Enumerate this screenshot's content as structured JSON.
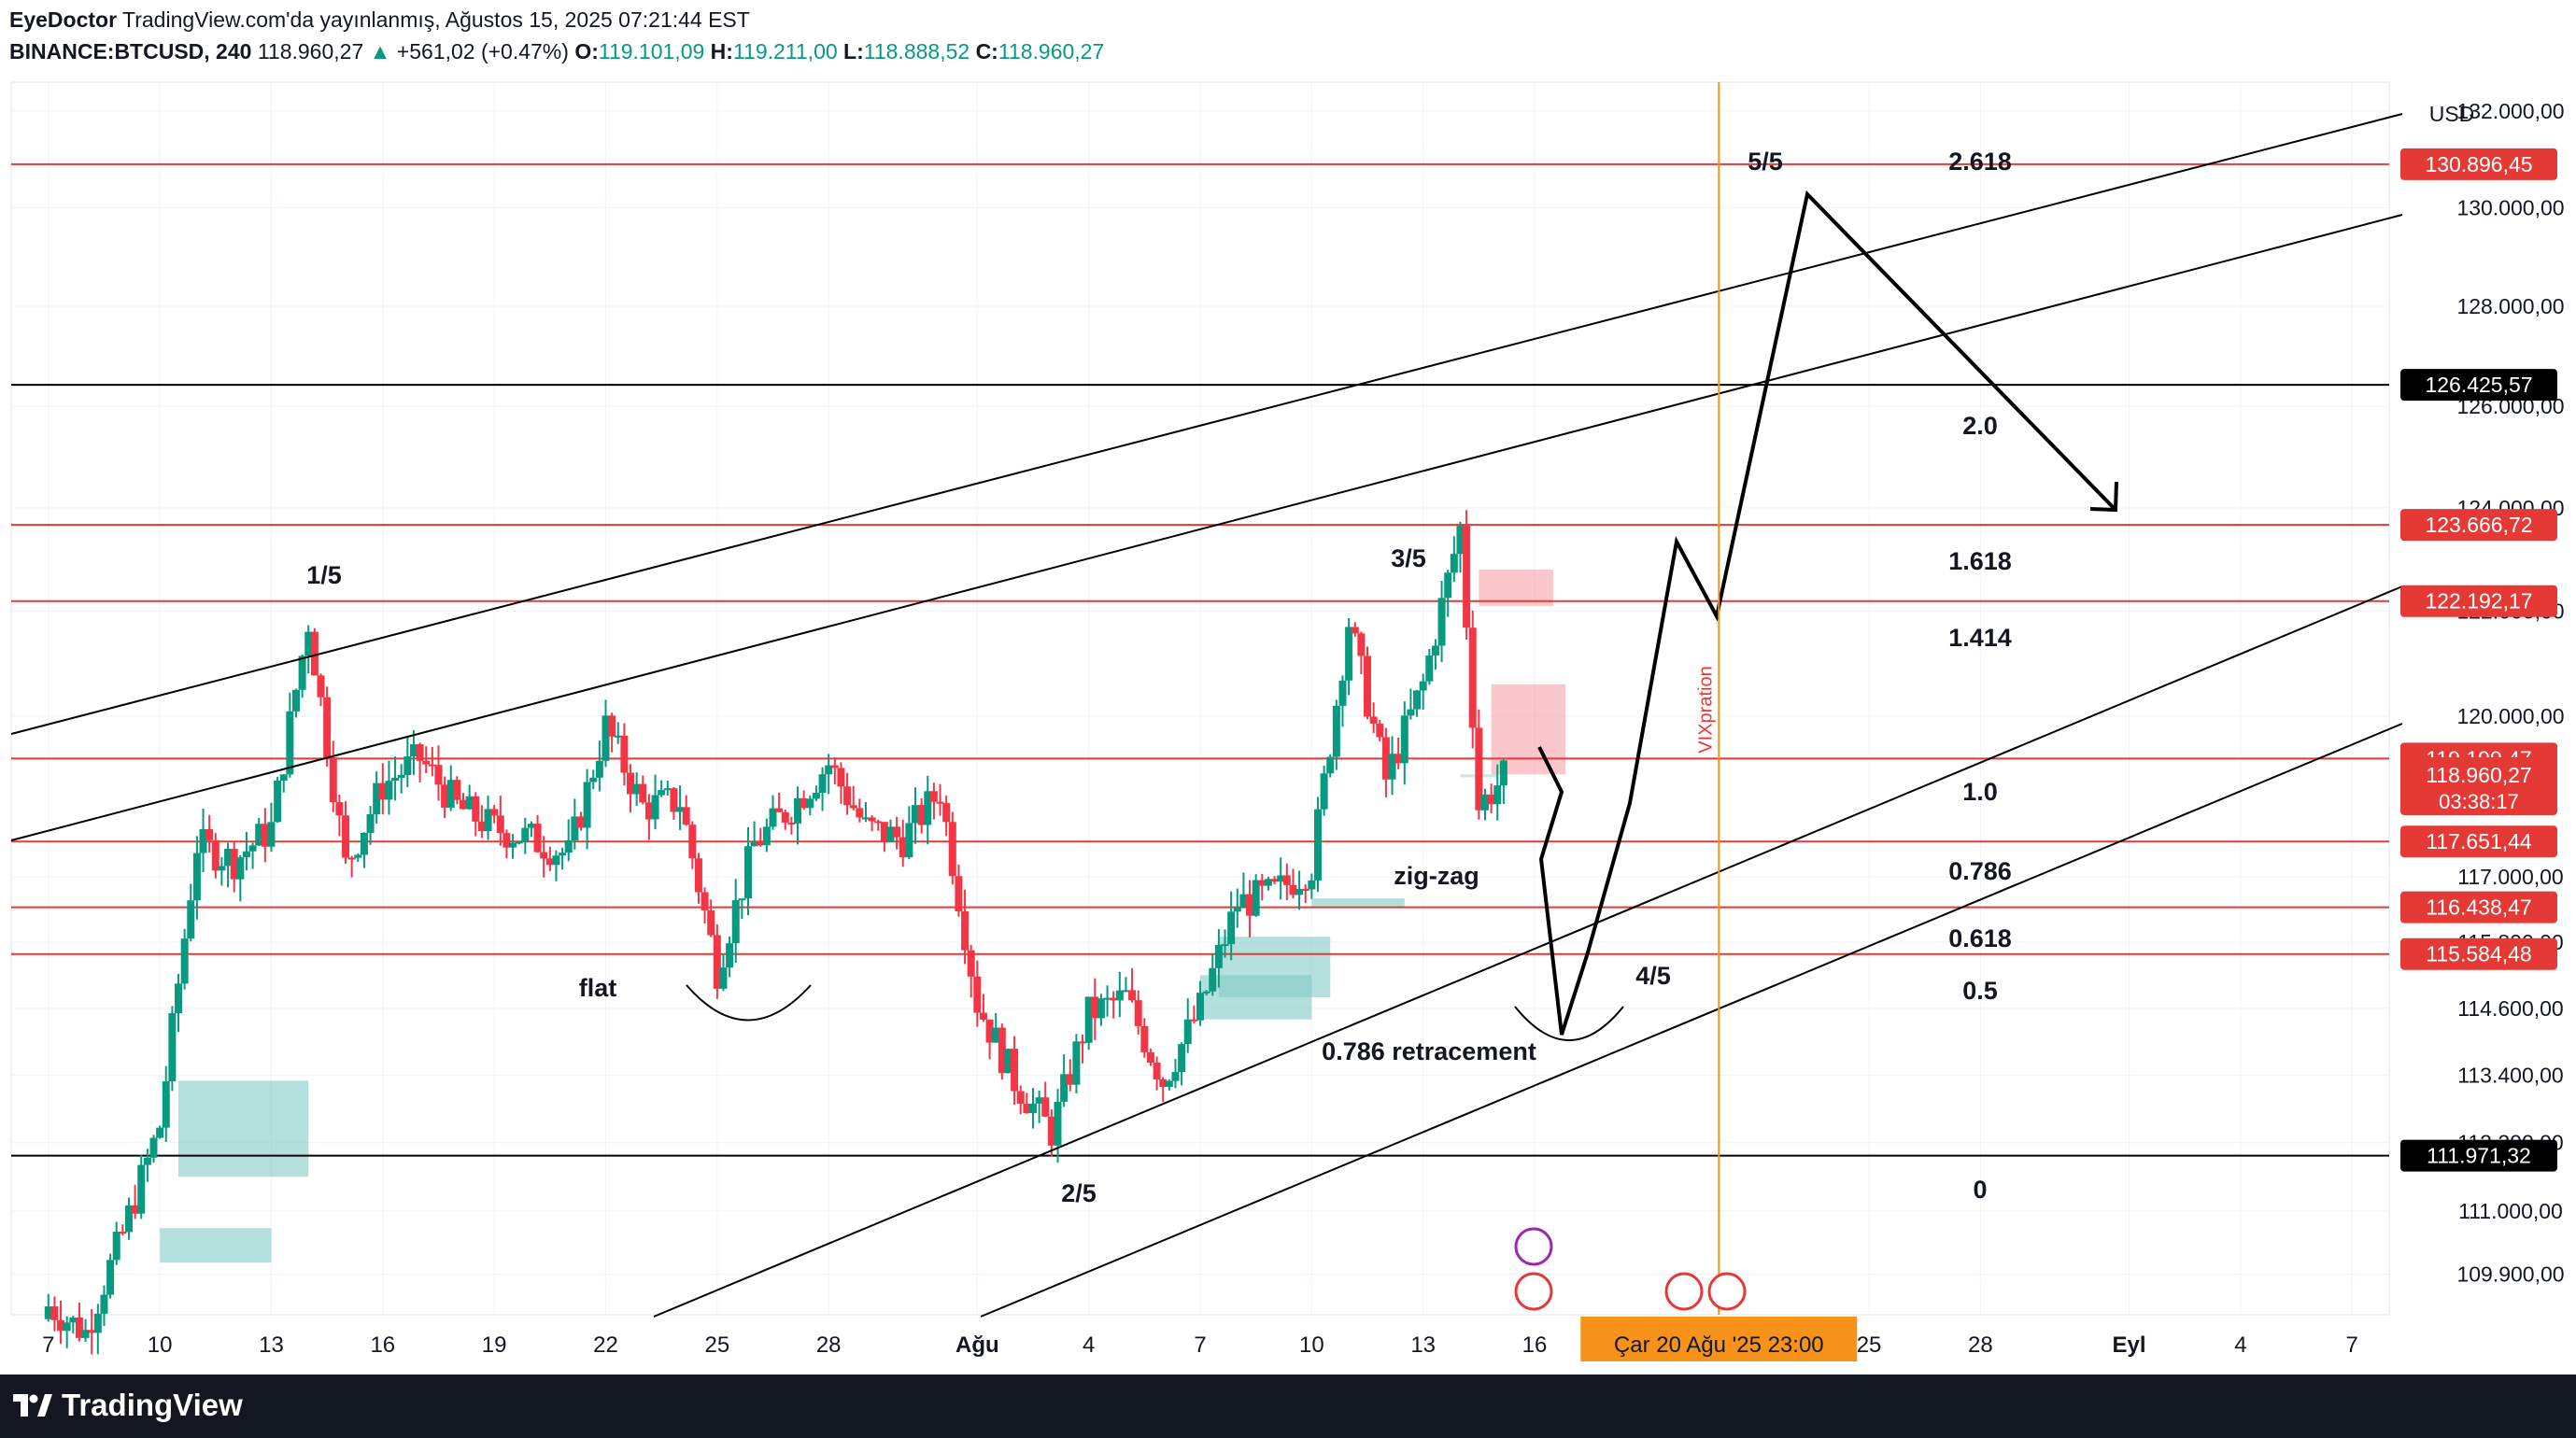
{
  "header": {
    "author": "EyeDoctor",
    "published": "TradingView.com'da yayınlanmış, Ağustos 15, 2025 07:21:44 EST",
    "symbol": "BINANCE:BTCUSD, 240",
    "last": "118.960,27",
    "change_arrow": "▲",
    "change": "+561,02 (+0.47%)",
    "o_label": "O:",
    "o_value": "119.101,09",
    "h_label": "H:",
    "h_value": "119.211,00",
    "l_label": "L:",
    "l_value": "118.888,52",
    "c_label": "C:",
    "c_value": "118.960,27"
  },
  "footer": {
    "brand": "TradingView",
    "logo_icon": "tradingview-logo-icon"
  },
  "colors": {
    "up": "#089981",
    "down": "#f23645",
    "red_line": "#e53935",
    "vertical_event": "#f7931a",
    "zone_green": "#80cbc4",
    "zone_red": "#f7a1ab"
  },
  "chart_data": {
    "type": "candlestick",
    "currency": "USD",
    "y_scale": "log",
    "ylim": [
      109200,
      132600
    ],
    "y_ticks": [
      {
        "value": 132000,
        "label": "132.000,00"
      },
      {
        "value": 130000,
        "label": "130.000,00"
      },
      {
        "value": 128000,
        "label": "128.000,00"
      },
      {
        "value": 126000,
        "label": "126.000,00"
      },
      {
        "value": 124000,
        "label": "124.000,00"
      },
      {
        "value": 122000,
        "label": "122.000,00"
      },
      {
        "value": 120000,
        "label": "120.000,00"
      },
      {
        "value": 117000,
        "label": "117.000,00"
      },
      {
        "value": 115800,
        "label": "115.800,00"
      },
      {
        "value": 114600,
        "label": "114.600,00"
      },
      {
        "value": 113400,
        "label": "113.400,00"
      },
      {
        "value": 112200,
        "label": "112.200,00"
      },
      {
        "value": 111000,
        "label": "111.000,00"
      },
      {
        "value": 109900,
        "label": "109.900,00"
      }
    ],
    "x_domain": [
      "2025-07-06",
      "2025-09-08"
    ],
    "x_ticks": [
      {
        "date": "2025-07-07",
        "label": "7"
      },
      {
        "date": "2025-07-10",
        "label": "10"
      },
      {
        "date": "2025-07-13",
        "label": "13"
      },
      {
        "date": "2025-07-16",
        "label": "16"
      },
      {
        "date": "2025-07-19",
        "label": "19"
      },
      {
        "date": "2025-07-22",
        "label": "22"
      },
      {
        "date": "2025-07-25",
        "label": "25"
      },
      {
        "date": "2025-07-28",
        "label": "28"
      },
      {
        "date": "2025-08-01",
        "label": "Ağu"
      },
      {
        "date": "2025-08-04",
        "label": "4"
      },
      {
        "date": "2025-08-07",
        "label": "7"
      },
      {
        "date": "2025-08-10",
        "label": "10"
      },
      {
        "date": "2025-08-13",
        "label": "13"
      },
      {
        "date": "2025-08-16",
        "label": "16"
      },
      {
        "date": "2025-08-25",
        "label": "25"
      },
      {
        "date": "2025-08-28",
        "label": "28"
      },
      {
        "date": "2025-09-01",
        "label": "Eyl"
      },
      {
        "date": "2025-09-04",
        "label": "4"
      },
      {
        "date": "2025-09-07",
        "label": "7"
      }
    ],
    "x_cursor": {
      "date": "2025-08-20 23:00",
      "label": "Çar 20 Ağu '25   23:00"
    },
    "close_path": [
      [
        "2025-07-06",
        109800
      ],
      [
        "2025-07-08",
        108900
      ],
      [
        "2025-07-09",
        110600
      ],
      [
        "2025-07-10",
        112500
      ],
      [
        "2025-07-11",
        117600
      ],
      [
        "2025-07-12",
        117300
      ],
      [
        "2025-07-13",
        117900
      ],
      [
        "2025-07-14",
        121800
      ],
      [
        "2025-07-15",
        117200
      ],
      [
        "2025-07-16",
        118700
      ],
      [
        "2025-07-17",
        119200
      ],
      [
        "2025-07-18",
        118300
      ],
      [
        "2025-07-19",
        117900
      ],
      [
        "2025-07-20",
        117700
      ],
      [
        "2025-07-21",
        117400
      ],
      [
        "2025-07-22",
        119800
      ],
      [
        "2025-07-23",
        118300
      ],
      [
        "2025-07-24",
        118400
      ],
      [
        "2025-07-25",
        115300
      ],
      [
        "2025-07-26",
        117600
      ],
      [
        "2025-07-27",
        118300
      ],
      [
        "2025-07-28",
        119100
      ],
      [
        "2025-07-29",
        117900
      ],
      [
        "2025-07-30",
        117700
      ],
      [
        "2025-07-31",
        118600
      ],
      [
        "2025-08-01",
        114700
      ],
      [
        "2025-08-02",
        113300
      ],
      [
        "2025-08-03",
        112400
      ],
      [
        "2025-08-04",
        114500
      ],
      [
        "2025-08-05",
        114800
      ],
      [
        "2025-08-06",
        113300
      ],
      [
        "2025-08-07",
        114600
      ],
      [
        "2025-08-08",
        116500
      ],
      [
        "2025-08-09",
        116700
      ],
      [
        "2025-08-10",
        117200
      ],
      [
        "2025-08-11",
        121800
      ],
      [
        "2025-08-12",
        118800
      ],
      [
        "2025-08-13",
        120600
      ],
      [
        "2025-08-14",
        123600
      ],
      [
        "2025-08-14 12:00",
        118300
      ],
      [
        "2025-08-15 07:00",
        118960
      ]
    ],
    "horizontal_levels": [
      {
        "value": 130896.45,
        "label": "130.896,45",
        "color": "red"
      },
      {
        "value": 126425.57,
        "label": "126.425,57",
        "color": "black"
      },
      {
        "value": 123666.72,
        "label": "123.666,72",
        "color": "red"
      },
      {
        "value": 122192.17,
        "label": "122.192,17",
        "color": "red"
      },
      {
        "value": 119199.47,
        "label": "119.199,47",
        "color": "red"
      },
      {
        "value": 117651.44,
        "label": "117.651,44",
        "color": "red"
      },
      {
        "value": 116438.47,
        "label": "116.438,47",
        "color": "red"
      },
      {
        "value": 115584.48,
        "label": "115.584,48",
        "color": "red"
      },
      {
        "value": 111971.32,
        "label": "111.971,32",
        "color": "black"
      }
    ],
    "last_price": {
      "value": 118960.27,
      "label": "118.960,27",
      "countdown": "03:38:17"
    },
    "fib_labels": [
      "2.618",
      "2.0",
      "1.618",
      "1.414",
      "1.0",
      "0.786",
      "0.618",
      "0.5",
      "0"
    ],
    "annotations": [
      "1/5",
      "2/5",
      "3/5",
      "4/5",
      "5/5",
      "flat",
      "zig-zag",
      "0.786 retracement",
      "VIXpration"
    ],
    "event_marker": {
      "date": "2025-08-20 23:00",
      "label": "VIXpration"
    }
  }
}
